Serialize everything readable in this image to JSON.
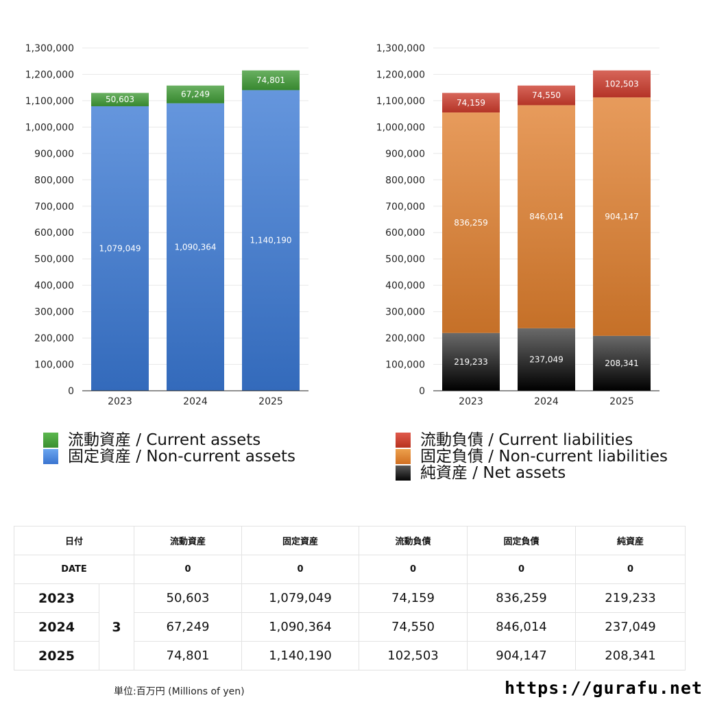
{
  "chart_data": [
    {
      "type": "bar",
      "stacked": true,
      "id": "assets",
      "categories": [
        "2023",
        "2024",
        "2025"
      ],
      "ylim": [
        0,
        1300000
      ],
      "yticks": [
        0,
        100000,
        200000,
        300000,
        400000,
        500000,
        600000,
        700000,
        800000,
        900000,
        1000000,
        1100000,
        1200000,
        1300000
      ],
      "ytick_labels": [
        "0",
        "100,000",
        "200,000",
        "300,000",
        "400,000",
        "500,000",
        "600,000",
        "700,000",
        "800,000",
        "900,000",
        "1,000,000",
        "1,100,000",
        "1,200,000",
        "1,300,000"
      ],
      "grid": true,
      "series": [
        {
          "name": "流動資産 / Current assets",
          "color": "#3f9a35",
          "values": [
            50603,
            67249,
            74801
          ],
          "labels": [
            "50,603",
            "67,249",
            "74,801"
          ]
        },
        {
          "name": "固定資産 / Non-current assets",
          "color": "#3a78d4",
          "values": [
            1079049,
            1090364,
            1140190
          ],
          "labels": [
            "1,079,049",
            "1,090,364",
            "1,140,190"
          ]
        }
      ],
      "stack_order_bottom_to_top": [
        1,
        0
      ]
    },
    {
      "type": "bar",
      "stacked": true,
      "id": "liabilities",
      "categories": [
        "2023",
        "2024",
        "2025"
      ],
      "ylim": [
        0,
        1300000
      ],
      "yticks": [
        0,
        100000,
        200000,
        300000,
        400000,
        500000,
        600000,
        700000,
        800000,
        900000,
        1000000,
        1100000,
        1200000,
        1300000
      ],
      "ytick_labels": [
        "0",
        "100,000",
        "200,000",
        "300,000",
        "400,000",
        "500,000",
        "600,000",
        "700,000",
        "800,000",
        "900,000",
        "1,000,000",
        "1,100,000",
        "1,200,000",
        "1,300,000"
      ],
      "grid": true,
      "series": [
        {
          "name": "流動負債 / Current liabilities",
          "color": "#cc3b2c",
          "values": [
            74159,
            74550,
            102503
          ],
          "labels": [
            "74,159",
            "74,550",
            "102,503"
          ]
        },
        {
          "name": "固定負債 / Non-current liabilities",
          "color": "#e07f2e",
          "values": [
            836259,
            846014,
            904147
          ],
          "labels": [
            "836,259",
            "846,014",
            "904,147"
          ]
        },
        {
          "name": "純資産 / Net assets",
          "color": "#1b1b1b",
          "values": [
            219233,
            237049,
            208341
          ],
          "labels": [
            "219,233",
            "237,049",
            "208,341"
          ]
        }
      ],
      "stack_order_bottom_to_top": [
        2,
        1,
        0
      ]
    }
  ],
  "legend_assets": [
    {
      "label": "流動資産 / Current assets",
      "color": "#4aa63d"
    },
    {
      "label": "固定資産 / Non-current assets",
      "color": "#4a87e0"
    }
  ],
  "legend_liab": [
    {
      "label": "流動負債 / Current liabilities",
      "color": "#d0473a"
    },
    {
      "label": "固定負債 / Non-current liabilities",
      "color": "#e38a38"
    },
    {
      "label": "純資産 / Net assets",
      "color": "#222222"
    }
  ],
  "table": {
    "header1": {
      "date": "日付",
      "cols": [
        "流動資産",
        "固定資産",
        "流動負債",
        "固定負債",
        "純資産"
      ]
    },
    "header2": {
      "date": "DATE",
      "cols": [
        "0",
        "0",
        "0",
        "0",
        "0"
      ]
    },
    "month": "3",
    "rows": [
      {
        "year": "2023",
        "values": [
          "50,603",
          "1,079,049",
          "74,159",
          "836,259",
          "219,233"
        ]
      },
      {
        "year": "2024",
        "values": [
          "67,249",
          "1,090,364",
          "74,550",
          "846,014",
          "237,049"
        ]
      },
      {
        "year": "2025",
        "values": [
          "74,801",
          "1,140,190",
          "102,503",
          "904,147",
          "208,341"
        ]
      }
    ]
  },
  "footer": {
    "unit": "単位:百万円 (Millions of yen)",
    "site": "https://gurafu.net/"
  }
}
